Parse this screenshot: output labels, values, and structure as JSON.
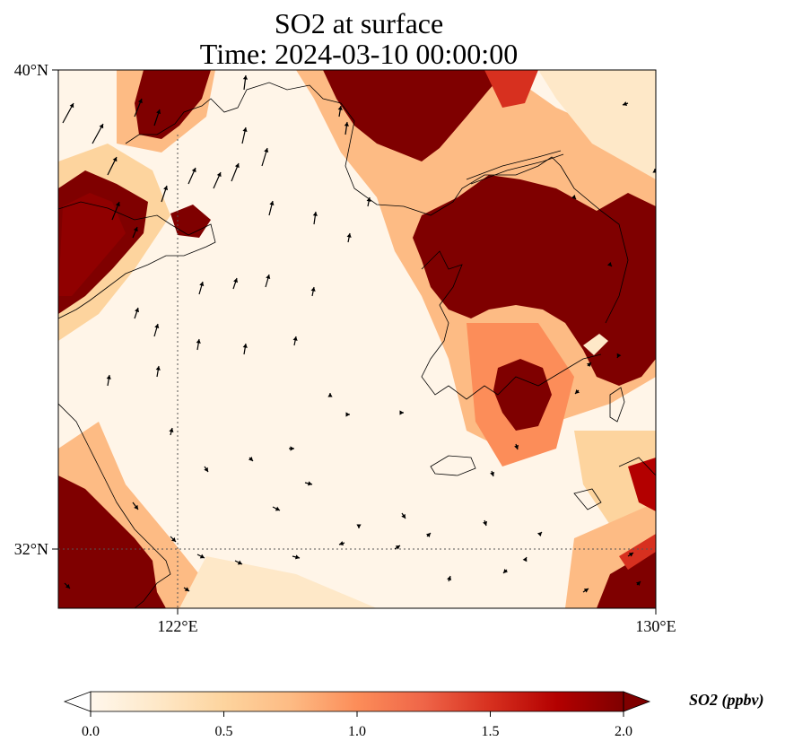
{
  "title": {
    "line1": "SO2 at surface",
    "line2": "Time: 2024-03-10 00:00:00"
  },
  "map": {
    "lat_ticks": [
      "40°N",
      "32°N"
    ],
    "lon_ticks": [
      "122°E",
      "130°E"
    ],
    "lat_range": [
      31,
      40
    ],
    "lon_range": [
      120,
      130
    ]
  },
  "colorbar": {
    "label": "SO2 (ppbv)",
    "ticks": [
      "0.0",
      "0.5",
      "1.0",
      "1.5",
      "2.0"
    ],
    "min": 0.0,
    "max": 2.0,
    "extend": "both",
    "colormap": [
      "#fff7ec",
      "#fee8c8",
      "#fdd49e",
      "#fdbb84",
      "#fc8d59",
      "#ef6548",
      "#d7301f",
      "#b30000",
      "#7f0000"
    ]
  },
  "colors": {
    "high": "#7f0000",
    "low": "#fff7ec",
    "frame": "#000000"
  }
}
